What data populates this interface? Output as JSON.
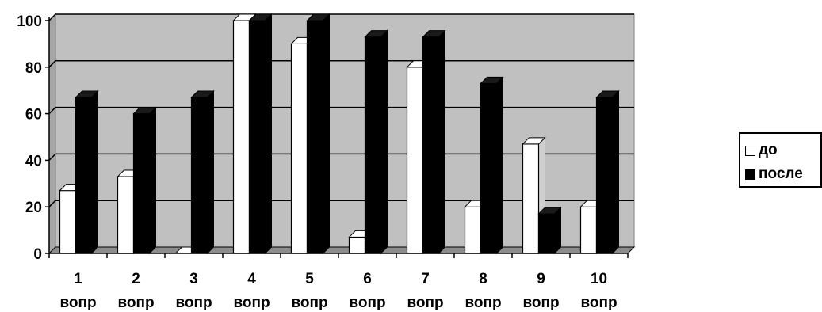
{
  "chart_data": {
    "type": "bar",
    "categories": [
      "1 вопр",
      "2 вопр",
      "3 вопр",
      "4 вопр",
      "5 вопр",
      "6 вопр",
      "7 вопр",
      "8 вопр",
      "9 вопр",
      "10 вопр"
    ],
    "category_labels": [
      {
        "num": "1",
        "word": "вопр"
      },
      {
        "num": "2",
        "word": "вопр"
      },
      {
        "num": "3",
        "word": "вопр"
      },
      {
        "num": "4",
        "word": "вопр"
      },
      {
        "num": "5",
        "word": "вопр"
      },
      {
        "num": "6",
        "word": "вопр"
      },
      {
        "num": "7",
        "word": "вопр"
      },
      {
        "num": "8",
        "word": "вопр"
      },
      {
        "num": "9",
        "word": "вопр"
      },
      {
        "num": "10",
        "word": "вопр"
      }
    ],
    "series": [
      {
        "name": "до",
        "values": [
          27,
          33,
          0,
          100,
          90,
          7,
          80,
          20,
          47,
          20
        ],
        "color": "#ffffff"
      },
      {
        "name": "после",
        "values": [
          67,
          60,
          67,
          100,
          100,
          93,
          93,
          73,
          17,
          67
        ],
        "color": "#000000"
      }
    ],
    "ylim": [
      0,
      100
    ],
    "yticks": [
      0,
      20,
      40,
      60,
      80,
      100
    ],
    "grid": true,
    "legend_position": "right",
    "plot_background": "#c0c0c0",
    "style": "3d-clustered-bar"
  }
}
